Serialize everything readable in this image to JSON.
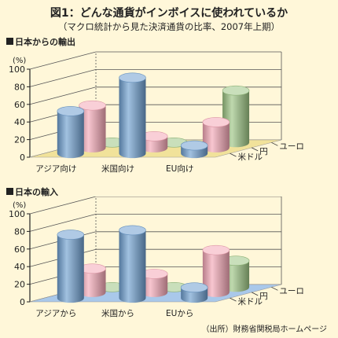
{
  "title": "図1：どんな通貨がインボイスに使われているか",
  "subtitle": "（マクロ統計から見た決済通貨の比率、2007年上期）",
  "source": "（出所）財務省関税局ホームページ",
  "colors": {
    "usd": "#6f9fd0",
    "yen": "#f4a7b6",
    "euro": "#9cc483"
  },
  "chart_data": [
    {
      "type": "bar",
      "title": "日本からの輸出",
      "ylabel": "(%)",
      "ylim": [
        0,
        100
      ],
      "yticks": [
        "0",
        "20",
        "40",
        "60",
        "80",
        "100"
      ],
      "categories": [
        "アジア向け",
        "米国向け",
        "EU向け"
      ],
      "series": [
        {
          "name": "米ドル",
          "values": [
            48,
            86,
            9
          ]
        },
        {
          "name": "円",
          "values": [
            48,
            13,
            29
          ]
        },
        {
          "name": "ユーロ",
          "values": [
            0,
            0,
            59
          ]
        }
      ]
    },
    {
      "type": "bar",
      "title": "日本の輸入",
      "ylabel": "(%)",
      "ylim": [
        0,
        100
      ],
      "yticks": [
        "0",
        "20",
        "40",
        "60",
        "80",
        "100"
      ],
      "categories": [
        "アジアから",
        "米国から",
        "EUから"
      ],
      "series": [
        {
          "name": "米ドル",
          "values": [
            72,
            77,
            12
          ]
        },
        {
          "name": "円",
          "values": [
            27,
            21,
            48
          ]
        },
        {
          "name": "ユーロ",
          "values": [
            0,
            0,
            30
          ]
        }
      ]
    }
  ]
}
